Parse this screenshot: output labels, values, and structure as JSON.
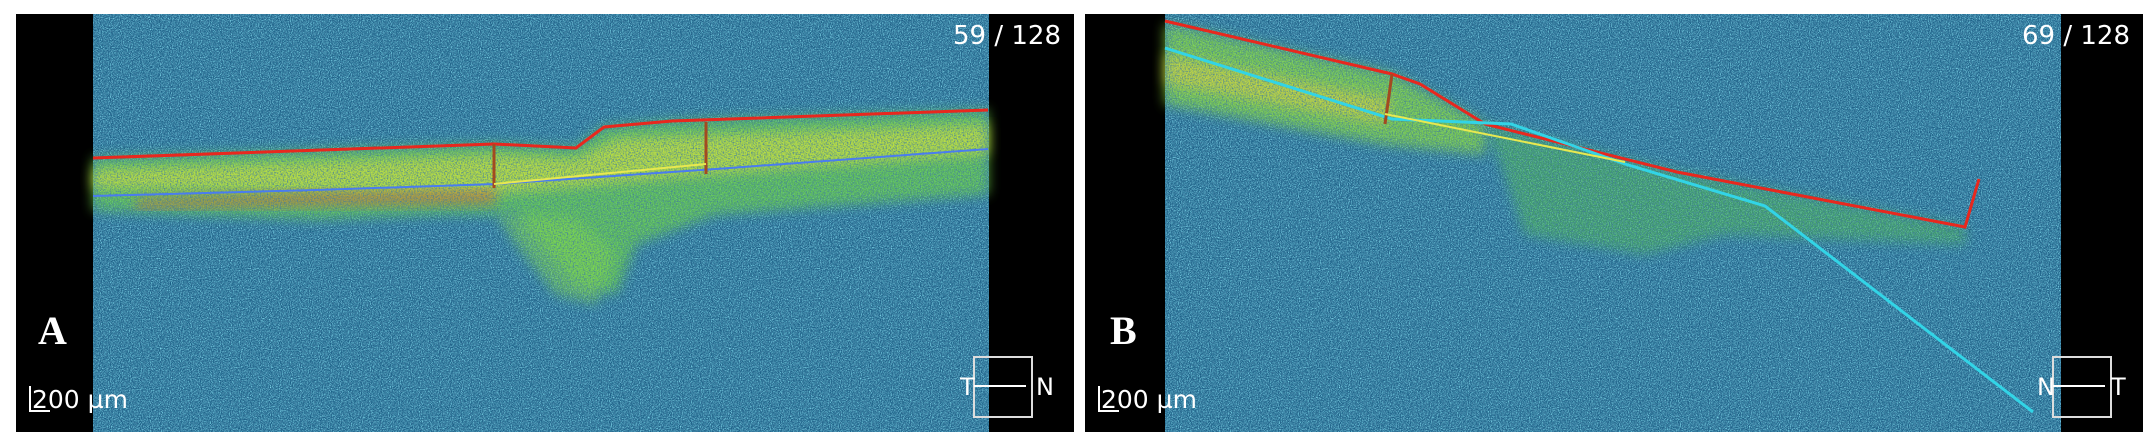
{
  "panels": [
    {
      "label": "A",
      "slice": "59 / 128",
      "scale": "200 µm",
      "orient_left": "T",
      "orient_right": "N"
    },
    {
      "label": "B",
      "slice": "69 / 128",
      "scale": "200 µm",
      "orient_left": "N",
      "orient_right": "T"
    }
  ]
}
